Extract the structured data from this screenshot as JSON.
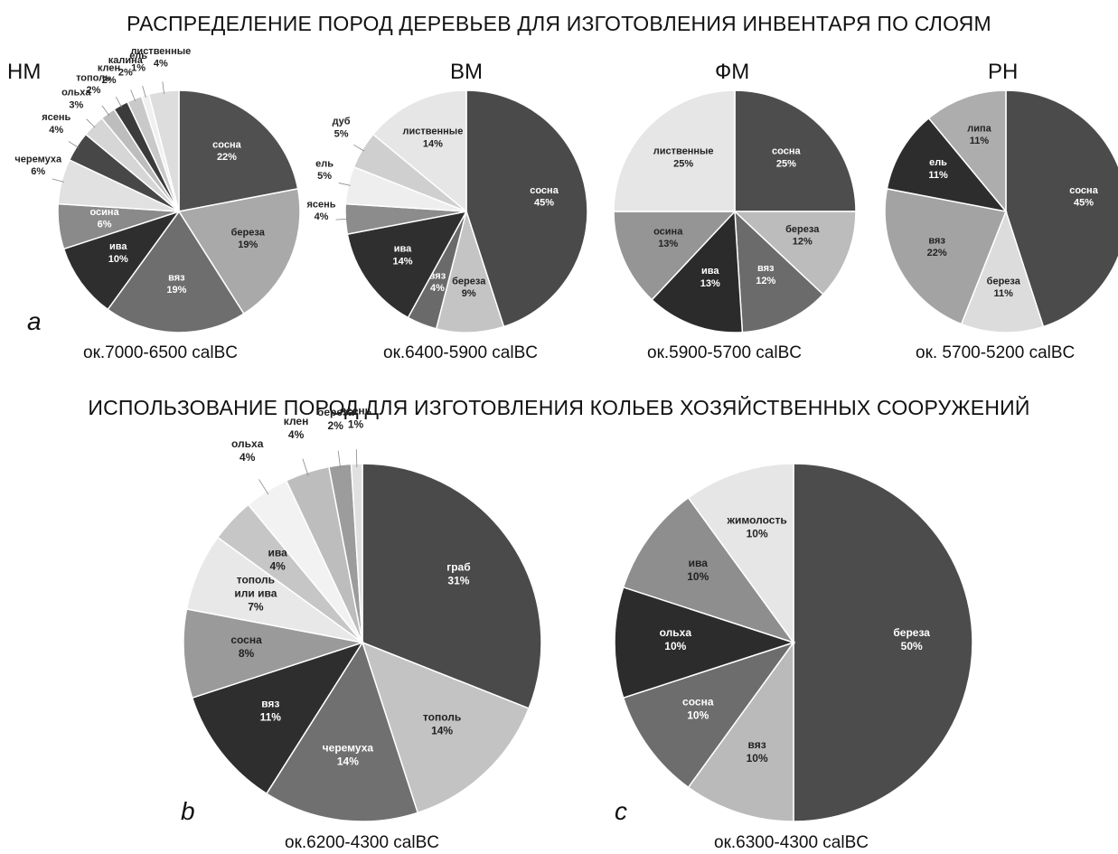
{
  "titles": {
    "top": "РАСПРЕДЕЛЕНИЕ ПОРОД ДЕРЕВЬЕВ ДЛЯ ИЗГОТОВЛЕНИЯ ИНВЕНТАРЯ ПО СЛОЯМ",
    "bottom": "ИСПОЛЬЗОВАНИЕ ПОРОД ДЛЯ ИЗГОТОВЛЕНИЯ КОЛЬЕВ ХОЗЯЙСТВЕННЫХ СООРУЖЕНИЙ"
  },
  "panel_letters": {
    "a": "a",
    "b": "b",
    "c": "c"
  },
  "chart_data": [
    {
      "type": "pie",
      "title": "НМ",
      "caption": "ок.7000-6500 calBC",
      "categories": [
        "сосна",
        "береза",
        "вяз",
        "ива",
        "осина",
        "черемуха",
        "ясень",
        "ольха",
        "тополь",
        "клен",
        "калина",
        "ель",
        "лиственные"
      ],
      "values": [
        22,
        19,
        19,
        10,
        6,
        6,
        4,
        3,
        2,
        2,
        2,
        1,
        4
      ],
      "labels": [
        "22%",
        "19%",
        "19%",
        "10%",
        "6%",
        "6%",
        "4%",
        "3%",
        "2%",
        "2%",
        "2%",
        "1%",
        "4%"
      ]
    },
    {
      "type": "pie",
      "title": "ВМ",
      "caption": "ок.6400-5900 calBC",
      "categories": [
        "сосна",
        "береза",
        "вяз",
        "ива",
        "ясень",
        "ель",
        "дуб",
        "лиственные"
      ],
      "values": [
        45,
        9,
        4,
        14,
        4,
        5,
        5,
        14
      ],
      "labels": [
        "45%",
        "9%",
        "4%",
        "14%",
        "4%",
        "5%",
        "5%",
        "14%"
      ]
    },
    {
      "type": "pie",
      "title": "ФМ",
      "caption": "ок.5900-5700 calBC",
      "categories": [
        "сосна",
        "береза",
        "вяз",
        "ива",
        "осина",
        "лиственные"
      ],
      "values": [
        25,
        12,
        12,
        13,
        13,
        25
      ],
      "labels": [
        "25%",
        "12%",
        "12%",
        "13%",
        "13%",
        "25%"
      ]
    },
    {
      "type": "pie",
      "title": "РН",
      "caption": "ок. 5700-5200 calBC",
      "categories": [
        "сосна",
        "береза",
        "вяз",
        "ель",
        "липа"
      ],
      "values": [
        45,
        11,
        22,
        11,
        11
      ],
      "labels": [
        "45%",
        "11%",
        "22%",
        "11%",
        "11%"
      ]
    },
    {
      "type": "pie",
      "title": "",
      "caption": "ок.6200-4300 calBC",
      "categories": [
        "граб",
        "тополь",
        "черемуха",
        "вяз",
        "сосна",
        "тополь или ива",
        "ива",
        "ольха",
        "клен",
        "береза",
        "ясень"
      ],
      "values": [
        31,
        14,
        14,
        11,
        8,
        7,
        4,
        4,
        4,
        2,
        1
      ],
      "labels": [
        "31%",
        "14%",
        "14%",
        "11%",
        "8%",
        "7%",
        "4%",
        "4%",
        "4%",
        "2%",
        "1%"
      ]
    },
    {
      "type": "pie",
      "title": "",
      "caption": "ок.6300-4300 calBC",
      "categories": [
        "береза",
        "вяз",
        "сосна",
        "ольха",
        "ива",
        "жимолость"
      ],
      "values": [
        50,
        10,
        10,
        10,
        10,
        10
      ],
      "labels": [
        "50%",
        "10%",
        "10%",
        "10%",
        "10%",
        "10%"
      ]
    }
  ]
}
